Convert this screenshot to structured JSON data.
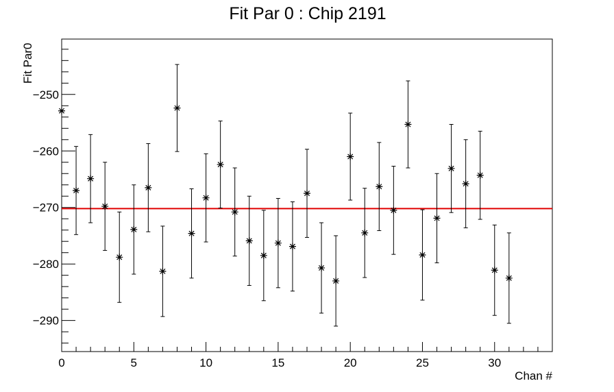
{
  "chart_data": {
    "type": "scatter",
    "title": "Fit Par 0 : Chip 2191",
    "xlabel": "Chan #",
    "ylabel": "Fit Par0",
    "xlim": [
      0,
      34
    ],
    "ylim": [
      -295.5,
      -240.2
    ],
    "x_ticks": [
      0,
      5,
      10,
      15,
      20,
      25,
      30
    ],
    "y_ticks": [
      -250,
      -260,
      -270,
      -280,
      -290
    ],
    "fit_line": {
      "y": -270.2,
      "color": "#e00000"
    },
    "marker_color": "#000000",
    "grid": false,
    "series": [
      {
        "points": [
          {
            "x": 0,
            "y": -252.9,
            "err": null
          },
          {
            "x": 1,
            "y": -267.0,
            "err": 7.8
          },
          {
            "x": 2,
            "y": -264.9,
            "err": 7.8
          },
          {
            "x": 3,
            "y": -269.8,
            "err": 7.8
          },
          {
            "x": 4,
            "y": -278.8,
            "err": 8.0
          },
          {
            "x": 5,
            "y": -273.9,
            "err": 7.9
          },
          {
            "x": 6,
            "y": -266.5,
            "err": 7.8
          },
          {
            "x": 7,
            "y": -281.3,
            "err": 8.0
          },
          {
            "x": 8,
            "y": -252.4,
            "err": 7.7
          },
          {
            "x": 9,
            "y": -274.6,
            "err": 7.9
          },
          {
            "x": 10,
            "y": -268.3,
            "err": 7.8
          },
          {
            "x": 11,
            "y": -262.4,
            "err": 7.7
          },
          {
            "x": 12,
            "y": -270.8,
            "err": 7.8
          },
          {
            "x": 13,
            "y": -275.9,
            "err": 7.9
          },
          {
            "x": 14,
            "y": -278.5,
            "err": 8.0
          },
          {
            "x": 15,
            "y": -276.3,
            "err": 7.9
          },
          {
            "x": 16,
            "y": -276.9,
            "err": 7.9
          },
          {
            "x": 17,
            "y": -267.5,
            "err": 7.8
          },
          {
            "x": 18,
            "y": -280.7,
            "err": 8.0
          },
          {
            "x": 19,
            "y": -283.0,
            "err": 8.0
          },
          {
            "x": 20,
            "y": -261.0,
            "err": 7.7
          },
          {
            "x": 21,
            "y": -274.5,
            "err": 7.9
          },
          {
            "x": 22,
            "y": -266.3,
            "err": 7.8
          },
          {
            "x": 23,
            "y": -270.5,
            "err": 7.8
          },
          {
            "x": 24,
            "y": -255.3,
            "err": 7.7
          },
          {
            "x": 25,
            "y": -278.4,
            "err": 8.0
          },
          {
            "x": 26,
            "y": -271.9,
            "err": 7.9
          },
          {
            "x": 27,
            "y": -263.1,
            "err": 7.8
          },
          {
            "x": 28,
            "y": -265.8,
            "err": 7.8
          },
          {
            "x": 29,
            "y": -264.3,
            "err": 7.8
          },
          {
            "x": 30,
            "y": -281.1,
            "err": 8.0
          },
          {
            "x": 31,
            "y": -282.5,
            "err": 8.0
          }
        ]
      }
    ]
  }
}
